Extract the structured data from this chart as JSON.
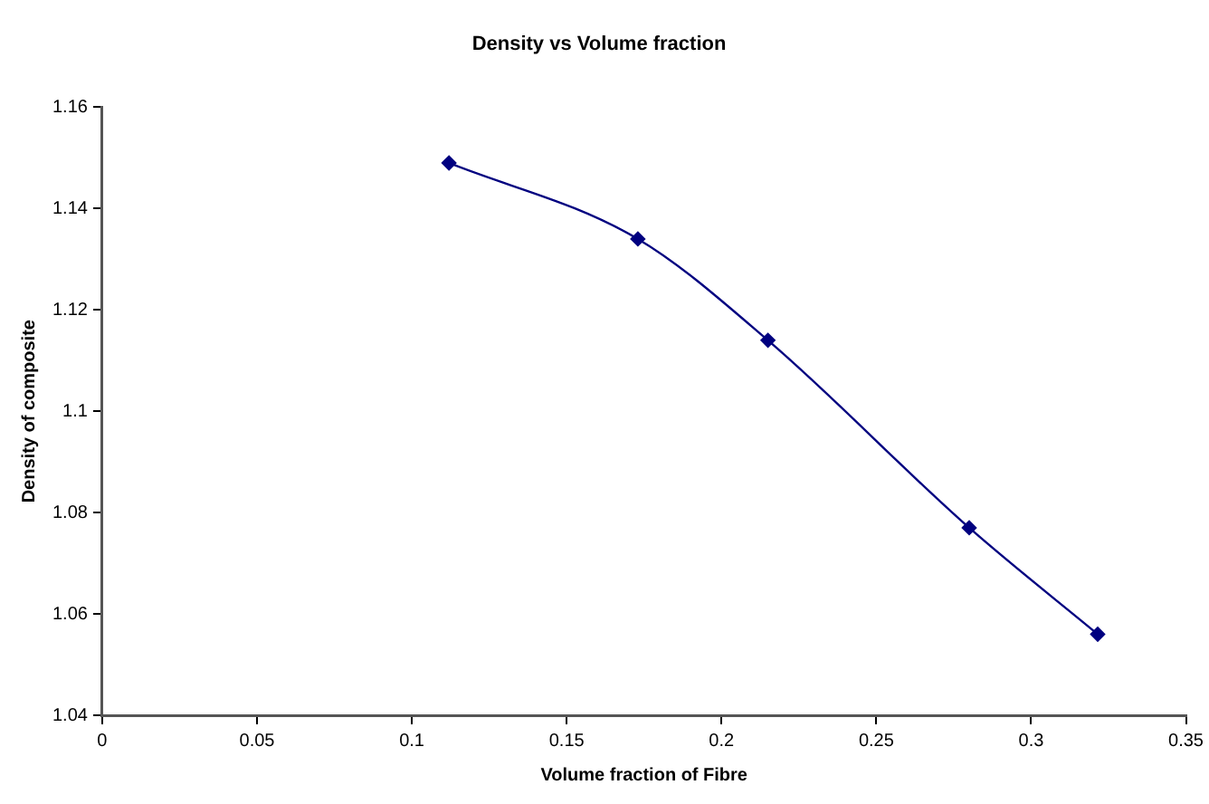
{
  "chart_data": {
    "type": "line",
    "title": "Density vs Volume fraction",
    "xlabel": "Volume fraction of Fibre",
    "ylabel": "Density of composite",
    "x": [
      0.112,
      0.173,
      0.215,
      0.28,
      0.3215
    ],
    "series": [
      {
        "color": "#000080",
        "values": [
          1.149,
          1.134,
          1.114,
          1.077,
          1.056
        ]
      }
    ],
    "xlim": [
      0,
      0.35
    ],
    "xticks": [
      0,
      0.05,
      0.1,
      0.15,
      0.2,
      0.25,
      0.3,
      0.35
    ],
    "ylim": [
      1.04,
      1.16
    ],
    "yticks": [
      1.04,
      1.06,
      1.08,
      1.1,
      1.12,
      1.14,
      1.16
    ],
    "grid": false,
    "legend": false,
    "marker": "diamond",
    "line_style": "solid"
  }
}
